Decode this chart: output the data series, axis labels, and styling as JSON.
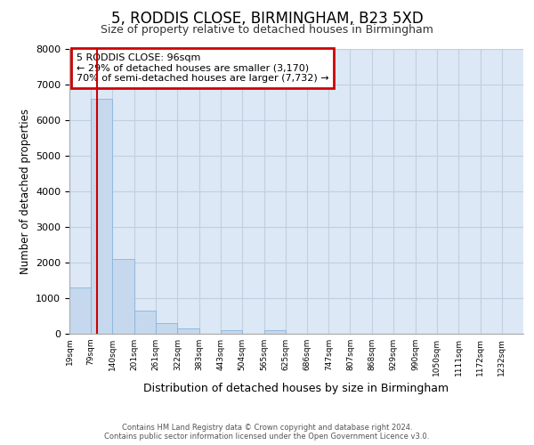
{
  "title": "5, RODDIS CLOSE, BIRMINGHAM, B23 5XD",
  "subtitle": "Size of property relative to detached houses in Birmingham",
  "xlabel": "Distribution of detached houses by size in Birmingham",
  "ylabel": "Number of detached properties",
  "annotation_line1": "5 RODDIS CLOSE: 96sqm",
  "annotation_line2": "← 29% of detached houses are smaller (3,170)",
  "annotation_line3": "70% of semi-detached houses are larger (7,732) →",
  "footer_line1": "Contains HM Land Registry data © Crown copyright and database right 2024.",
  "footer_line2": "Contains public sector information licensed under the Open Government Licence v3.0.",
  "bar_edges": [
    19,
    79,
    140,
    201,
    261,
    322,
    383,
    443,
    504,
    565,
    625,
    686,
    747,
    807,
    868,
    929,
    990,
    1050,
    1111,
    1172,
    1232
  ],
  "bar_heights": [
    1300,
    6600,
    2100,
    650,
    300,
    150,
    0,
    100,
    0,
    100,
    0,
    0,
    0,
    0,
    0,
    0,
    0,
    0,
    0,
    0,
    0
  ],
  "bar_color": "#c5d8ee",
  "bar_edge_color": "#8ab4d8",
  "grid_color": "#c0cfe0",
  "background_color": "#dce8f5",
  "ylim": [
    0,
    8000
  ],
  "yticks": [
    0,
    1000,
    2000,
    3000,
    4000,
    5000,
    6000,
    7000,
    8000
  ],
  "red_line_x": 96,
  "tick_labels": [
    "19sqm",
    "79sqm",
    "140sqm",
    "201sqm",
    "261sqm",
    "322sqm",
    "383sqm",
    "443sqm",
    "504sqm",
    "565sqm",
    "625sqm",
    "686sqm",
    "747sqm",
    "807sqm",
    "868sqm",
    "929sqm",
    "990sqm",
    "1050sqm",
    "1111sqm",
    "1172sqm",
    "1232sqm"
  ]
}
